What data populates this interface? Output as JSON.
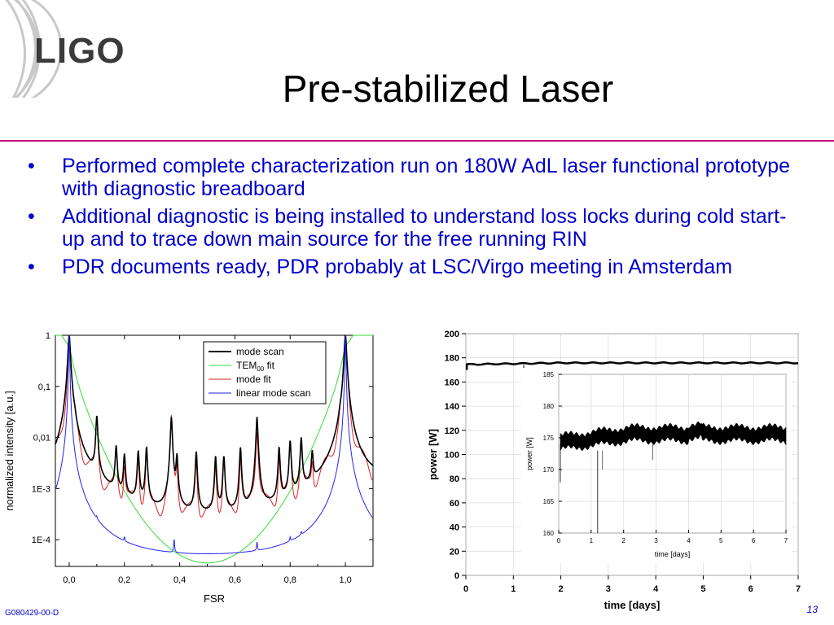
{
  "slide": {
    "logo_text": "LIGO",
    "title": "Pre-stabilized Laser",
    "bullets": [
      "Performed complete characterization run on 180W AdL laser functional prototype with diagnostic breadboard",
      "Additional diagnostic is being installed to understand loss locks during cold start-up and to trace down main source for the free running RIN",
      "PDR documents ready, PDR probably at LSC/Virgo meeting in Amsterdam"
    ],
    "footer_doc_id": "G080429-00-D",
    "page_number": "13"
  },
  "colors": {
    "accent_rule": "#c0007a",
    "bullet_text": "#0000cc"
  },
  "chart_data": [
    {
      "type": "line",
      "xlabel": "FSR",
      "ylabel": "normalized intensity [a.u.]",
      "yscale": "log",
      "xlim": [
        -0.05,
        1.1
      ],
      "ylim": [
        3e-05,
        1
      ],
      "xticks": [
        "0,0",
        "0,2",
        "0,4",
        "0,6",
        "0,8",
        "1,0"
      ],
      "yticks": [
        "1",
        "0,1",
        "0,01",
        "1E-3",
        "1E-4"
      ],
      "legend_position": "top-right",
      "series": [
        {
          "name": "mode scan",
          "color": "#000000"
        },
        {
          "name": "TEM",
          "name_sub": "00",
          "name_suffix": " fit",
          "color": "#33dd33"
        },
        {
          "name": "mode fit",
          "color": "#dd2222"
        },
        {
          "name": "linear mode scan",
          "color": "#2222ee"
        }
      ]
    },
    {
      "type": "line",
      "xlabel": "time [days]",
      "ylabel": "power [W]",
      "xlim": [
        0,
        7
      ],
      "ylim": [
        0,
        200
      ],
      "xticks": [
        "0",
        "1",
        "2",
        "3",
        "4",
        "5",
        "6",
        "7"
      ],
      "yticks": [
        "0",
        "20",
        "40",
        "60",
        "80",
        "100",
        "120",
        "140",
        "160",
        "180",
        "200"
      ],
      "series": [
        {
          "values_approx": 175,
          "color": "#000000"
        }
      ],
      "inset": {
        "xlabel": "time [days]",
        "ylabel": "power [W]",
        "xlim": [
          0,
          7
        ],
        "ylim": [
          160,
          185
        ],
        "xticks": [
          "0",
          "1",
          "2",
          "3",
          "4",
          "5",
          "6",
          "7"
        ],
        "yticks": [
          "160",
          "165",
          "170",
          "175",
          "180",
          "185"
        ]
      }
    }
  ]
}
